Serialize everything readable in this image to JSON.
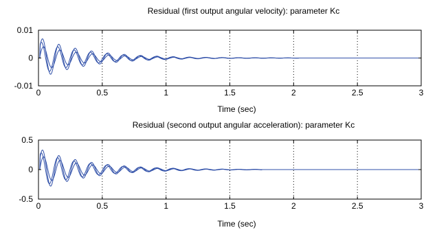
{
  "chart_data": [
    {
      "type": "line",
      "title": "Residual (first output angular velocity): parameter Kc",
      "xlabel": "Time (sec)",
      "ylabel": "",
      "xlim": [
        0,
        3
      ],
      "ylim": [
        -0.01,
        0.01
      ],
      "xticks": [
        0,
        0.5,
        1,
        1.5,
        2,
        2.5,
        3
      ],
      "xtick_labels": [
        "0",
        "0.5",
        "1",
        "1.5",
        "2",
        "2.5",
        "3"
      ],
      "yticks": [
        -0.01,
        0,
        0.01
      ],
      "ytick_labels": [
        "-0.01",
        "0",
        "0.01"
      ],
      "grid": "vertical-dotted",
      "series_color": "#2f4fa8",
      "series": [
        {
          "amplitude": 0.0075,
          "frequency_hz": 7.8,
          "decay": 2.6,
          "phase": 0.0,
          "end": 2.05
        },
        {
          "amplitude": 0.006,
          "frequency_hz": 7.8,
          "decay": 2.6,
          "phase": 0.4,
          "end": 2.05
        },
        {
          "amplitude": 0.0045,
          "frequency_hz": 7.8,
          "decay": 2.6,
          "phase": -0.4,
          "end": 2.05
        }
      ]
    },
    {
      "type": "line",
      "title": "Residual (second output  angular acceleration): parameter Kc",
      "xlabel": "Time (sec)",
      "ylabel": "",
      "xlim": [
        0,
        3
      ],
      "ylim": [
        -0.5,
        0.5
      ],
      "xticks": [
        0,
        0.5,
        1,
        1.5,
        2,
        2.5,
        3
      ],
      "xtick_labels": [
        "0",
        "0.5",
        "1",
        "1.5",
        "2",
        "2.5",
        "3"
      ],
      "yticks": [
        -0.5,
        0,
        0.5
      ],
      "ytick_labels": [
        "-0.5",
        "0",
        "0.5"
      ],
      "grid": "vertical-dotted",
      "series_color": "#2f4fa8",
      "series": [
        {
          "amplitude": 0.36,
          "frequency_hz": 7.8,
          "decay": 2.6,
          "phase": 0.0,
          "end": 1.75
        },
        {
          "amplitude": 0.3,
          "frequency_hz": 7.8,
          "decay": 2.6,
          "phase": 0.45,
          "end": 1.75
        },
        {
          "amplitude": 0.24,
          "frequency_hz": 7.8,
          "decay": 2.6,
          "phase": -0.45,
          "end": 1.75
        }
      ]
    }
  ]
}
